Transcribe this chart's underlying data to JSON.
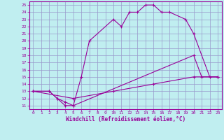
{
  "xlabel": "Windchill (Refroidissement éolien,°C)",
  "xlim": [
    -0.5,
    23.5
  ],
  "ylim": [
    10.5,
    25.5
  ],
  "xticks": [
    0,
    1,
    2,
    3,
    4,
    5,
    6,
    7,
    8,
    9,
    10,
    11,
    12,
    13,
    14,
    15,
    16,
    17,
    18,
    19,
    20,
    21,
    22,
    23
  ],
  "yticks": [
    11,
    12,
    13,
    14,
    15,
    16,
    17,
    18,
    19,
    20,
    21,
    22,
    23,
    24,
    25
  ],
  "bg_color": "#c0eef0",
  "grid_color": "#9999cc",
  "line_color": "#990099",
  "line1_x": [
    0,
    2,
    3,
    4,
    5,
    6,
    7,
    10,
    11,
    12,
    13,
    14,
    15,
    16,
    17,
    19,
    20,
    22,
    23
  ],
  "line1_y": [
    13,
    13,
    12,
    11,
    11,
    15,
    20,
    23,
    22,
    24,
    24,
    25,
    25,
    24,
    24,
    23,
    21,
    15,
    15
  ],
  "line2_x": [
    0,
    2,
    3,
    4,
    5,
    20,
    21,
    23
  ],
  "line2_y": [
    13,
    13,
    12,
    11.5,
    11,
    18,
    15,
    15
  ],
  "line3_x": [
    0,
    5,
    10,
    15,
    20,
    23
  ],
  "line3_y": [
    13,
    12,
    13,
    14,
    15,
    15
  ]
}
